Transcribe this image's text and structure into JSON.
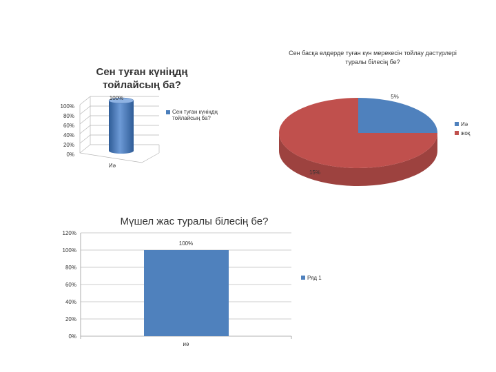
{
  "chart_data": [
    {
      "type": "bar",
      "style": "3d-cylinder",
      "title": "Сен туған күніңдң тойлайсың ба?",
      "categories": [
        "Иә"
      ],
      "series": [
        {
          "name": "Сен туған күніңдң тойлайсың ба?",
          "values": [
            100
          ]
        }
      ],
      "data_labels": [
        "100%"
      ],
      "yticks": [
        "0%",
        "20%",
        "40%",
        "60%",
        "80%",
        "100%"
      ],
      "ylim": [
        0,
        100
      ],
      "legend": "right",
      "colors": {
        "series": "#4a7ebb"
      }
    },
    {
      "type": "pie",
      "style": "3d",
      "title": "Сен басқа елдерде туған күн мерекесін тойлау дәстүрлері туралы білесің бе?",
      "slices": [
        {
          "name": "Иә",
          "value": 5,
          "label": "5%",
          "color": "#4f81bd"
        },
        {
          "name": "жоқ",
          "value": 15,
          "label": "15%",
          "color": "#c0504d"
        }
      ],
      "legend": "right"
    },
    {
      "type": "bar",
      "title": "Мүшел жас туралы білесің бе?",
      "categories": [
        "иә"
      ],
      "series": [
        {
          "name": "Ряд 1",
          "values": [
            100
          ]
        }
      ],
      "data_labels": [
        "100%"
      ],
      "yticks": [
        "0%",
        "20%",
        "40%",
        "60%",
        "80%",
        "100%",
        "120%"
      ],
      "ylim": [
        0,
        120
      ],
      "grid": true,
      "legend": "right",
      "colors": {
        "series": "#4f81bd"
      }
    }
  ]
}
